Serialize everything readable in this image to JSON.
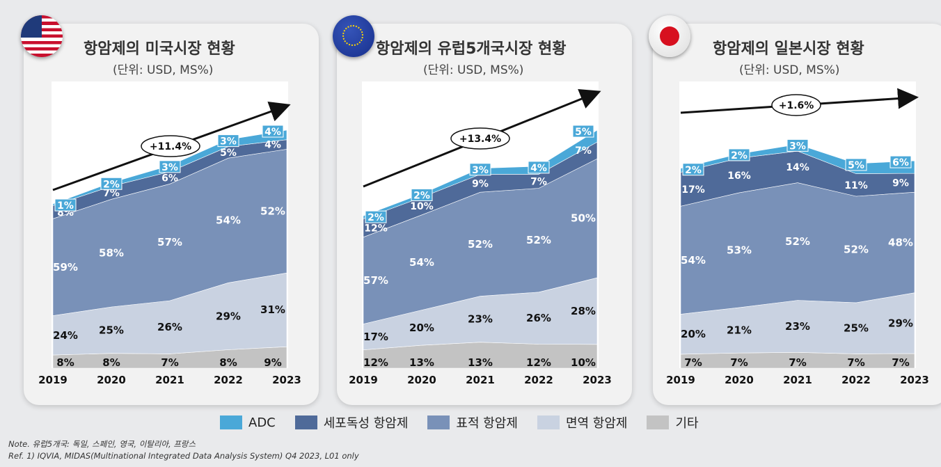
{
  "colors": {
    "ADC": "#4aa8d8",
    "cytotoxic": "#4f6a99",
    "targeted": "#7991b8",
    "immuno": "#c9d2e1",
    "other": "#c3c3c3"
  },
  "legend": [
    {
      "key": "ADC",
      "label": "ADC"
    },
    {
      "key": "cytotoxic",
      "label": "세포독성 항암제"
    },
    {
      "key": "targeted",
      "label": "표적 항암제"
    },
    {
      "key": "immuno",
      "label": "면역 항암제"
    },
    {
      "key": "other",
      "label": "기타"
    }
  ],
  "note": "Note. 유럽5개국: 독일, 스페인, 영국, 이탈리아, 프랑스",
  "ref": "Ref. 1) IQVIA, MIDAS(Multinational Integrated Data Analysis System) Q4 2023, L01 only",
  "panels": [
    {
      "title": "항암제의 미국시장 현황",
      "unit": "(단위: USD, MS%)",
      "flag": "us-flag-icon"
    },
    {
      "title": "항암제의 유럽5개국시장 현황",
      "unit": "(단위: USD, MS%)",
      "flag": "eu-flag-icon"
    },
    {
      "title": "항암제의 일본시장 현황",
      "unit": "(단위: USD, MS%)",
      "flag": "japan-flag-icon"
    }
  ],
  "chart_data": [
    {
      "type": "area",
      "stacked": true,
      "categories": [
        "2019",
        "2020",
        "2021",
        "2022",
        "2023"
      ],
      "growth_label": "+11.4%",
      "relative_market_size": [
        0.69,
        0.78,
        0.86,
        0.97,
        1.0
      ],
      "series": [
        {
          "name": "기타",
          "key": "other",
          "values": [
            8,
            8,
            7,
            8,
            9
          ]
        },
        {
          "name": "면역 항암제",
          "key": "immuno",
          "values": [
            24,
            25,
            26,
            29,
            31
          ]
        },
        {
          "name": "표적 항암제",
          "key": "targeted",
          "values": [
            59,
            58,
            57,
            54,
            52
          ]
        },
        {
          "name": "세포독성 항암제",
          "key": "cytotoxic",
          "values": [
            8,
            7,
            6,
            5,
            4
          ]
        },
        {
          "name": "ADC",
          "key": "ADC",
          "values": [
            1,
            2,
            3,
            3,
            4
          ]
        }
      ]
    },
    {
      "type": "area",
      "stacked": true,
      "categories": [
        "2019",
        "2020",
        "2021",
        "2022",
        "2023"
      ],
      "growth_label": "+13.4%",
      "relative_market_size": [
        0.64,
        0.74,
        0.84,
        0.84,
        1.0
      ],
      "series": [
        {
          "name": "기타",
          "key": "other",
          "values": [
            12,
            13,
            13,
            12,
            10
          ]
        },
        {
          "name": "면역 항암제",
          "key": "immuno",
          "values": [
            17,
            20,
            23,
            26,
            28
          ]
        },
        {
          "name": "표적 항암제",
          "key": "targeted",
          "values": [
            57,
            54,
            52,
            52,
            50
          ]
        },
        {
          "name": "세포독성 항암제",
          "key": "cytotoxic",
          "values": [
            12,
            10,
            9,
            7,
            7
          ]
        },
        {
          "name": "ADC",
          "key": "ADC",
          "values": [
            2,
            2,
            3,
            4,
            5
          ]
        }
      ]
    },
    {
      "type": "area",
      "stacked": true,
      "categories": [
        "2019",
        "2020",
        "2021",
        "2022",
        "2023"
      ],
      "growth_label": "+1.6%",
      "relative_market_size": [
        0.84,
        0.91,
        0.95,
        0.86,
        0.88
      ],
      "series": [
        {
          "name": "기타",
          "key": "other",
          "values": [
            7,
            7,
            7,
            7,
            7
          ]
        },
        {
          "name": "면역 항암제",
          "key": "immuno",
          "values": [
            20,
            21,
            23,
            25,
            29
          ]
        },
        {
          "name": "표적 항암제",
          "key": "targeted",
          "values": [
            54,
            53,
            52,
            52,
            48
          ]
        },
        {
          "name": "세포독성 항암제",
          "key": "cytotoxic",
          "values": [
            17,
            16,
            14,
            11,
            9
          ]
        },
        {
          "name": "ADC",
          "key": "ADC",
          "values": [
            2,
            2,
            3,
            5,
            6
          ]
        }
      ]
    }
  ]
}
